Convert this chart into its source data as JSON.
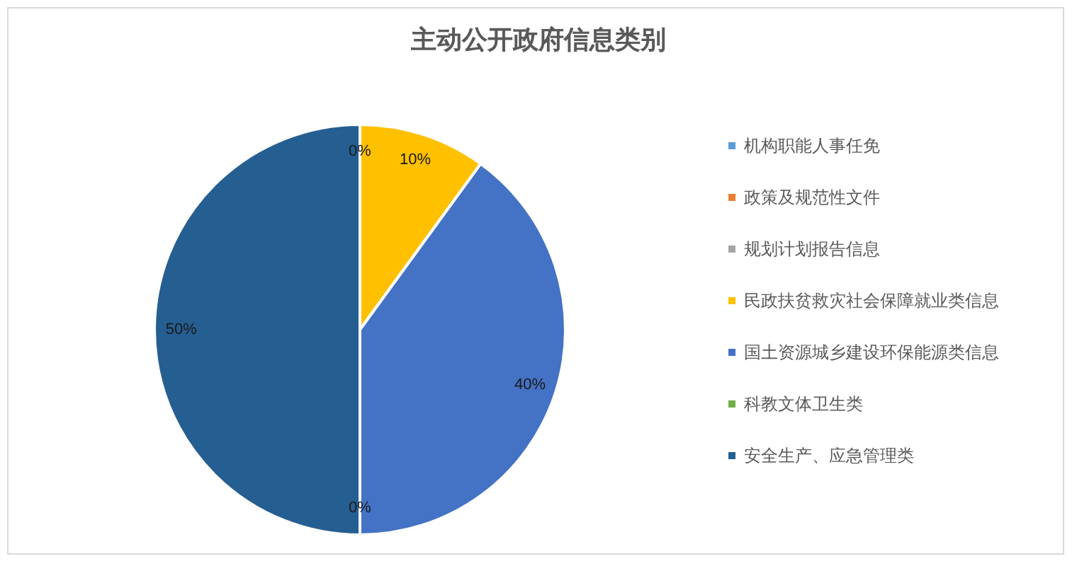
{
  "chart_data": {
    "type": "pie",
    "title": "主动公开政府信息类别",
    "categories": [
      "机构职能人事任免",
      "政策及规范性文件",
      "规划计划报告信息",
      "民政扶贫救灾社会保障就业类信息",
      "国土资源城乡建设环保能源类信息",
      "科教文体卫生类",
      "安全生产、应急管理类"
    ],
    "values": [
      0,
      0,
      0,
      10,
      40,
      0,
      50
    ],
    "colors": [
      "#5b9bd5",
      "#ed7d31",
      "#a5a5a5",
      "#ffc000",
      "#4472c4",
      "#70ad47",
      "#255e91"
    ],
    "value_labels": [
      "0%",
      null,
      null,
      "10%",
      "40%",
      "0%",
      "50%"
    ],
    "legend": "right"
  }
}
